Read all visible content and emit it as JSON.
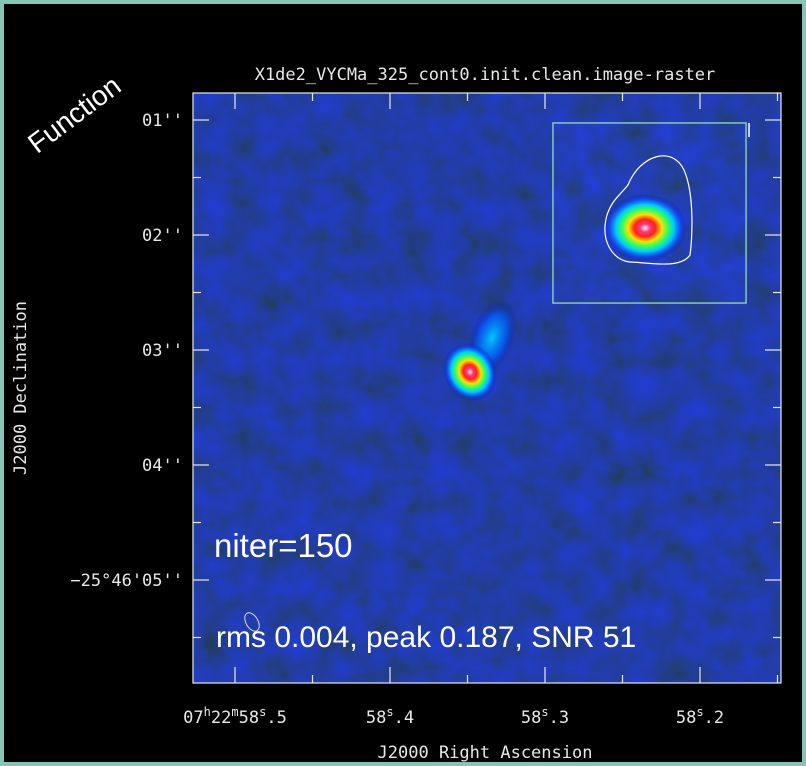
{
  "plot": {
    "title": "X1de2_VYCMa_325_cont0.init.clean.image-raster",
    "y_axis_label": "J2000 Declination",
    "x_axis_label": "J2000 Right Ascension",
    "y_tick_labels": [
      "01''",
      "02''",
      "03''",
      "04''",
      "−25°46'05''"
    ],
    "x_tick_labels": [
      [
        "07",
        "h",
        "22",
        "m",
        "58",
        "s",
        ".5"
      ],
      [
        "58",
        "s",
        ".4"
      ],
      [
        "58",
        "s",
        ".3"
      ],
      [
        "58",
        "s",
        ".2"
      ]
    ]
  },
  "annotations": {
    "corner_label": "Function",
    "niter": "niter=150",
    "stats": "rms 0.004, peak 0.187, SNR 51"
  }
}
